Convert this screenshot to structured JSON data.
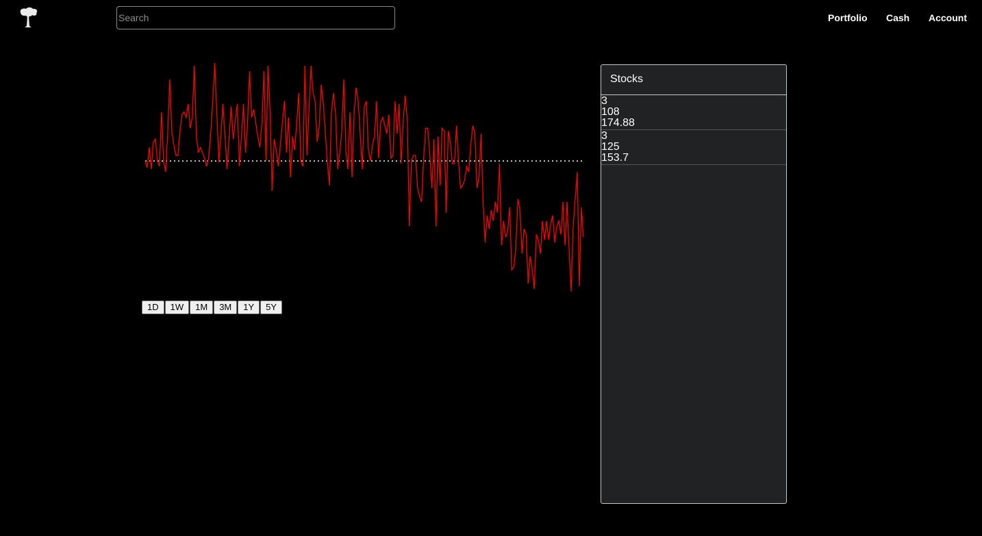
{
  "header": {
    "logo_icon": "tree-icon",
    "search_placeholder": "Search",
    "nav": [
      "Portfolio",
      "Cash",
      "Account"
    ]
  },
  "chart_data": {
    "type": "line",
    "title": "",
    "xlabel": "",
    "ylabel": "",
    "line_color": "#ff0000",
    "baseline_style": "dotted white",
    "baseline": 0,
    "ylim": [
      -100,
      72
    ],
    "values": [
      0,
      -5,
      10,
      -6,
      14,
      16,
      0,
      -4,
      36,
      0,
      -8,
      20,
      60,
      22,
      12,
      4,
      4,
      22,
      34,
      36,
      32,
      42,
      24,
      32,
      70,
      18,
      6,
      10,
      6,
      2,
      -4,
      2,
      20,
      44,
      72,
      34,
      -1,
      20,
      42,
      18,
      -6,
      18,
      40,
      16,
      30,
      42,
      -4,
      18,
      42,
      6,
      28,
      66,
      32,
      38,
      28,
      18,
      10,
      28,
      66,
      0,
      70,
      36,
      -22,
      16,
      8,
      -4,
      12,
      28,
      44,
      6,
      32,
      -12,
      18,
      8,
      28,
      50,
      0,
      -4,
      70,
      4,
      38,
      70,
      50,
      44,
      14,
      26,
      56,
      42,
      20,
      -2,
      -18,
      36,
      50,
      34,
      -6,
      6,
      22,
      60,
      8,
      -6,
      36,
      -12,
      34,
      54,
      44,
      20,
      -6,
      40,
      44,
      8,
      0,
      12,
      18,
      44,
      2,
      28,
      32,
      26,
      20,
      34,
      2,
      4,
      44,
      20,
      42,
      -2,
      30,
      48,
      30,
      -48,
      0,
      4,
      4,
      -20,
      -26,
      -30,
      2,
      24,
      24,
      4,
      -20,
      16,
      -48,
      18,
      -18,
      24,
      22,
      -38,
      22,
      14,
      -2,
      -2,
      26,
      0,
      -20,
      -18,
      -14,
      -4,
      -8,
      12,
      26,
      20,
      -20,
      -12,
      20,
      -30,
      -60,
      -40,
      -50,
      -36,
      -44,
      -30,
      -38,
      -2,
      -62,
      -44,
      -56,
      -52,
      -34,
      -80,
      -78,
      -64,
      -28,
      -36,
      -68,
      -50,
      -54,
      -90,
      -70,
      -80,
      -94,
      -54,
      -58,
      -68,
      -44,
      -58,
      -44,
      -58,
      -46,
      -40,
      -60,
      -48,
      -44,
      -54,
      -30,
      -62,
      -30,
      -66,
      -96,
      -48,
      -28,
      -8,
      -92,
      -34,
      -56
    ]
  },
  "ranges": [
    "1D",
    "1W",
    "1M",
    "3M",
    "1Y",
    "5Y"
  ],
  "panel": {
    "title": "Stocks",
    "stocks": [
      {
        "line1": "3",
        "line2": "108",
        "line3": "174.88"
      },
      {
        "line1": "3",
        "line2": "125",
        "line3": "153.7"
      }
    ]
  }
}
